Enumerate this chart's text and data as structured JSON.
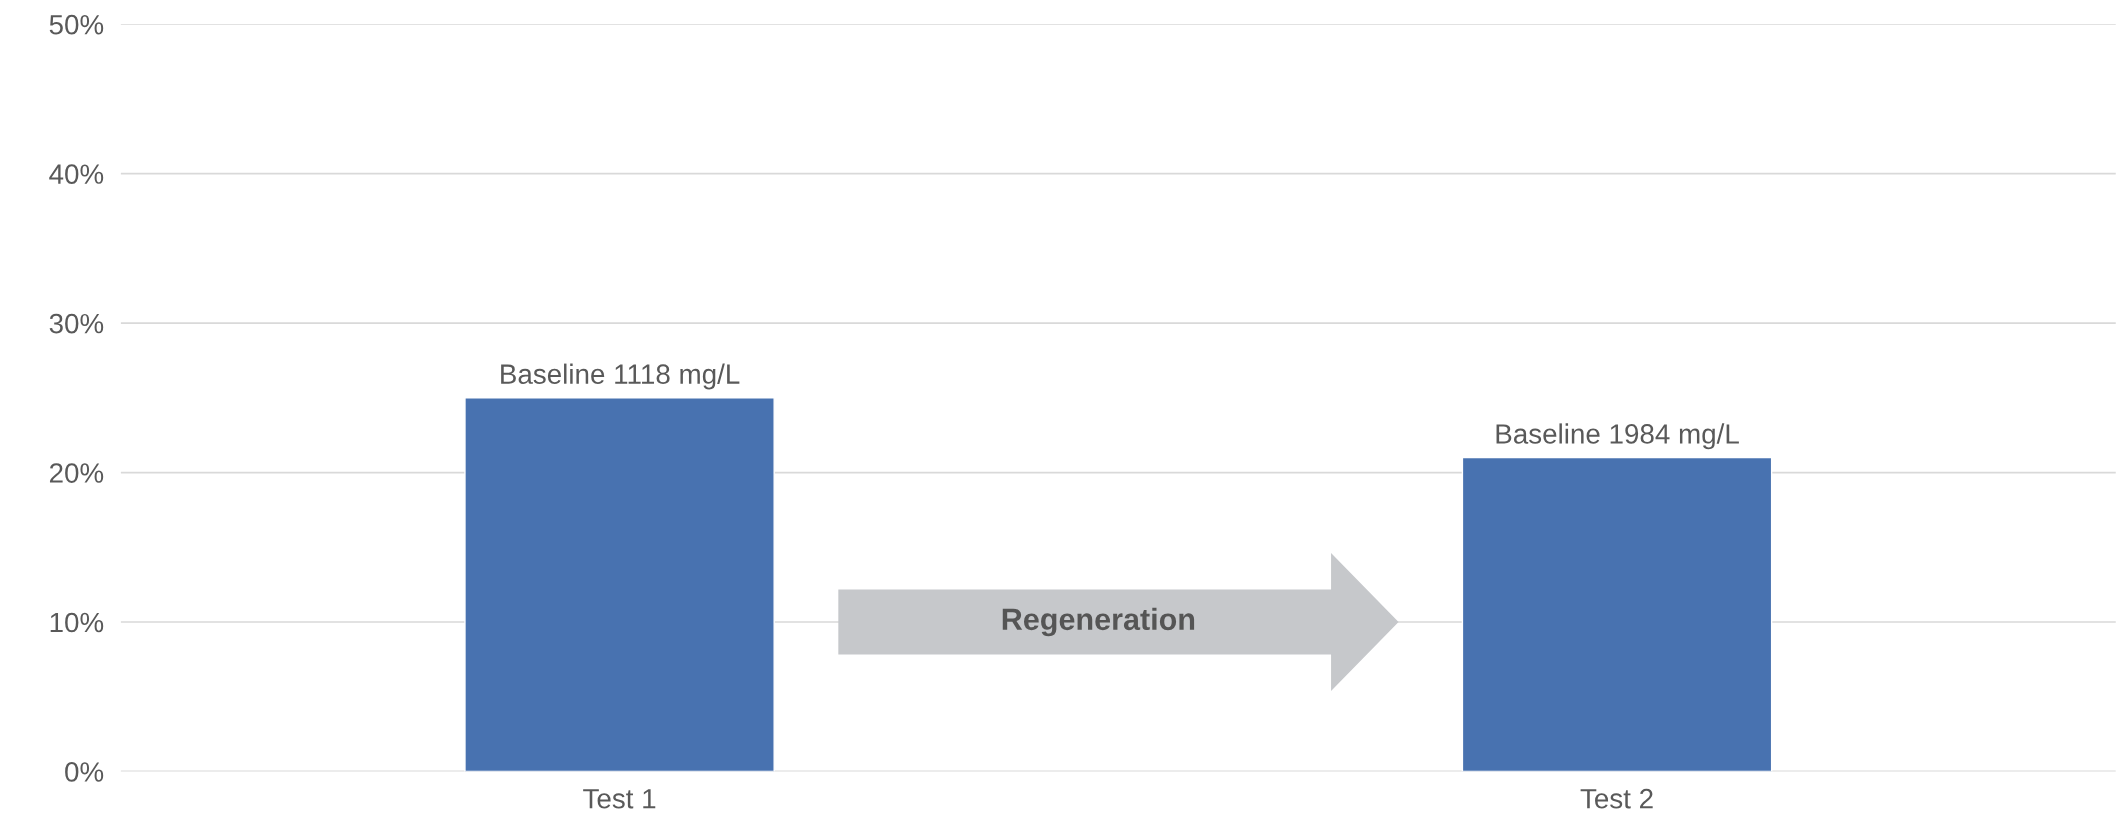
{
  "chart_data": {
    "type": "bar",
    "categories": [
      "Test 1",
      "Test 2"
    ],
    "values": [
      25,
      21
    ],
    "color": "#4872b0",
    "ylim": [
      0,
      50
    ],
    "yticks": [
      {
        "value": 0,
        "label": "0%"
      },
      {
        "value": 10,
        "label": "10%"
      },
      {
        "value": 20,
        "label": "20%"
      },
      {
        "value": 30,
        "label": "30%"
      },
      {
        "value": 40,
        "label": "40%"
      },
      {
        "value": 50,
        "label": "50%"
      }
    ],
    "grid": "y",
    "legend": false,
    "annotations": [
      {
        "text": "Baseline 1118 mg/L",
        "x": "Test 1",
        "y": 25
      },
      {
        "text": "Baseline 1984 mg/L",
        "x": "Test 2",
        "y": 21
      },
      "Regeneration"
    ]
  }
}
